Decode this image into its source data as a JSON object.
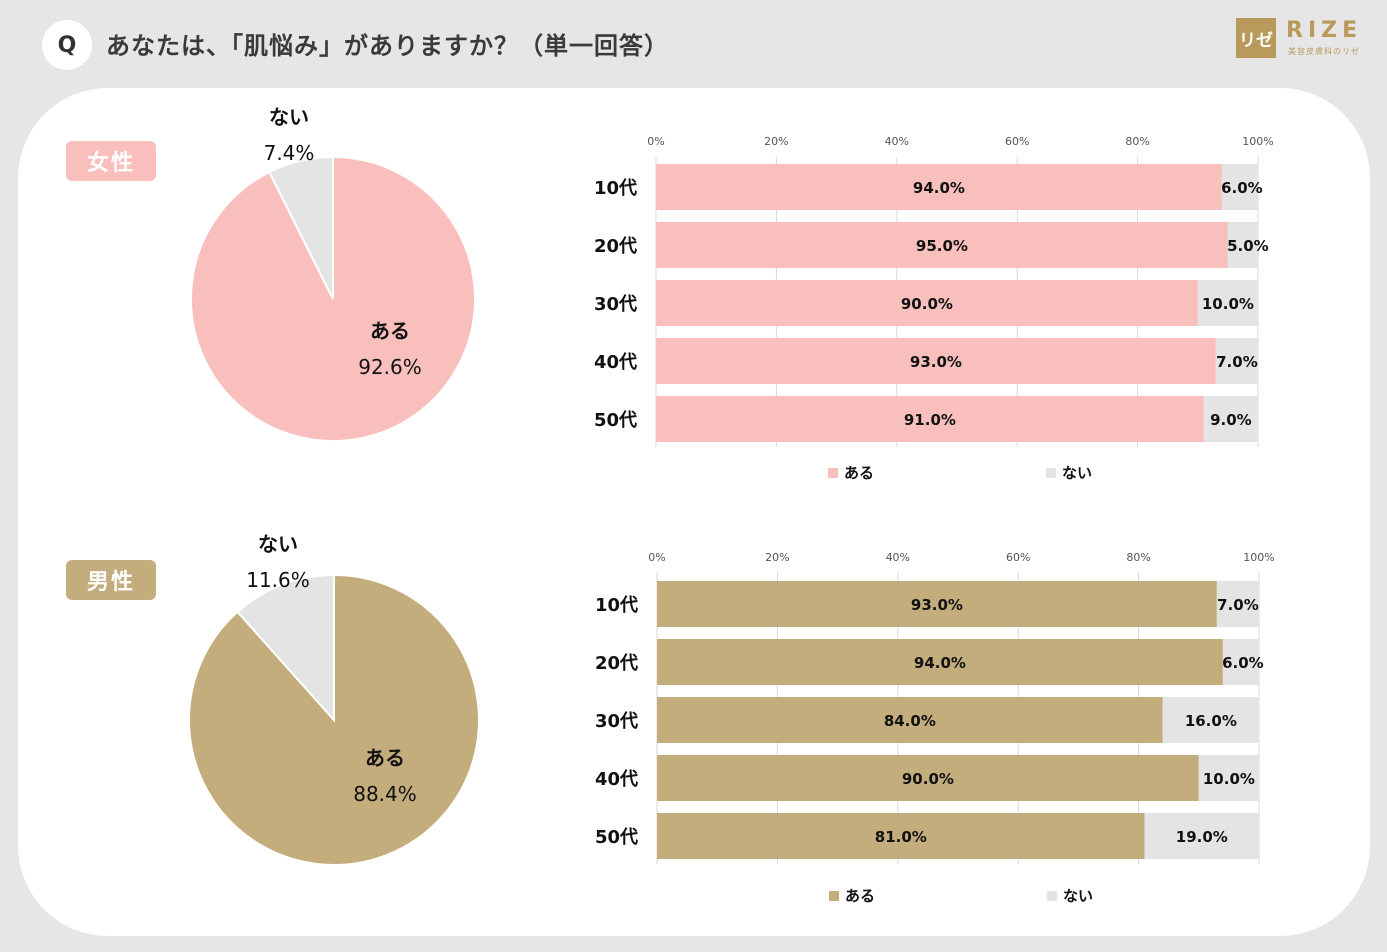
{
  "header": {
    "q_label": "Q",
    "question": "あなたは、「肌悩み」がありますか？（単一回答）",
    "logo_mark": "リゼ",
    "logo_word": "RIZE",
    "logo_sub": "美容皮膚科のリゼ"
  },
  "colors": {
    "female": "#f8bfbd",
    "male": "#c4ad7d",
    "none": "#e4e4e4"
  },
  "sections": {
    "female": {
      "label": "女性"
    },
    "male": {
      "label": "男性"
    }
  },
  "chart_data": [
    {
      "id": "female-pie",
      "type": "pie",
      "labels": [
        "ある",
        "ない"
      ],
      "values": [
        92.6,
        7.4
      ],
      "value_labels": [
        "92.6%",
        "7.4%"
      ],
      "colors": [
        "#f8bfbd",
        "#e4e4e4"
      ]
    },
    {
      "id": "female-bar",
      "type": "bar",
      "orientation": "horizontal",
      "stacked": true,
      "categories": [
        "10代",
        "20代",
        "30代",
        "40代",
        "50代"
      ],
      "series": [
        {
          "name": "ある",
          "values": [
            94.0,
            95.0,
            90.0,
            93.0,
            91.0
          ],
          "labels": [
            "94.0%",
            "95.0%",
            "90.0%",
            "93.0%",
            "91.0%"
          ],
          "color": "#f8bfbd"
        },
        {
          "name": "ない",
          "values": [
            6.0,
            5.0,
            10.0,
            7.0,
            9.0
          ],
          "labels": [
            "6.0%",
            "5.0%",
            "10.0%",
            "7.0%",
            "9.0%"
          ],
          "color": "#e4e4e4"
        }
      ],
      "xticks": [
        "0%",
        "20%",
        "40%",
        "60%",
        "80%",
        "100%"
      ],
      "xlim": [
        0,
        100
      ],
      "legend": "bottom"
    },
    {
      "id": "male-pie",
      "type": "pie",
      "labels": [
        "ある",
        "ない"
      ],
      "values": [
        88.4,
        11.6
      ],
      "value_labels": [
        "88.4%",
        "11.6%"
      ],
      "colors": [
        "#c4ad7d",
        "#e4e4e4"
      ]
    },
    {
      "id": "male-bar",
      "type": "bar",
      "orientation": "horizontal",
      "stacked": true,
      "categories": [
        "10代",
        "20代",
        "30代",
        "40代",
        "50代"
      ],
      "series": [
        {
          "name": "ある",
          "values": [
            93.0,
            94.0,
            84.0,
            90.0,
            81.0
          ],
          "labels": [
            "93.0%",
            "94.0%",
            "84.0%",
            "90.0%",
            "81.0%"
          ],
          "color": "#c4ad7d"
        },
        {
          "name": "ない",
          "values": [
            7.0,
            6.0,
            16.0,
            10.0,
            19.0
          ],
          "labels": [
            "7.0%",
            "6.0%",
            "16.0%",
            "10.0%",
            "19.0%"
          ],
          "color": "#e4e4e4"
        }
      ],
      "xticks": [
        "0%",
        "20%",
        "40%",
        "60%",
        "80%",
        "100%"
      ],
      "xlim": [
        0,
        100
      ],
      "legend": "bottom"
    }
  ]
}
